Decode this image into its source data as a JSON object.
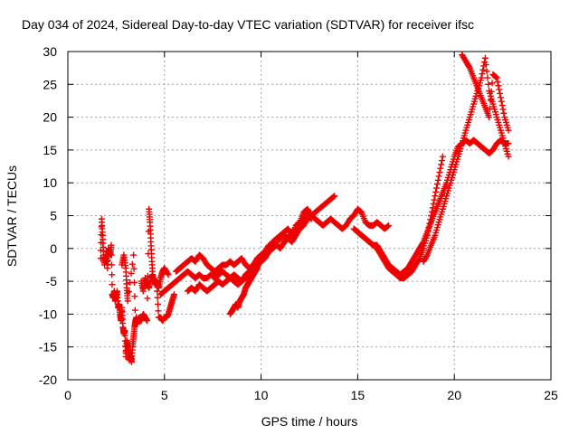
{
  "chart_data": {
    "type": "scatter",
    "title": "Day 034 of 2024, Sidereal Day-to-day VTEC variation (SDTVAR) for receiver ifsc",
    "xlabel": "GPS time / hours",
    "ylabel": "SDTVAR / TECUs",
    "xlim": [
      0,
      25
    ],
    "ylim": [
      -20,
      30
    ],
    "x_ticks": [
      "0",
      "5",
      "10",
      "15",
      "20",
      "25"
    ],
    "y_ticks": [
      "-20",
      "-15",
      "-10",
      "-5",
      "0",
      "5",
      "10",
      "15",
      "20",
      "25",
      "30"
    ],
    "grid": true,
    "marker": "plus",
    "color": "#ee0000",
    "series": [
      {
        "x": [
          1.7,
          1.75,
          1.8,
          1.85,
          1.9,
          2.0,
          2.05,
          2.1,
          2.2,
          2.25,
          2.3,
          2.35,
          2.4,
          2.45,
          2.5,
          2.55,
          2.6,
          2.65,
          2.7,
          2.75,
          2.8,
          2.85,
          2.9,
          2.95,
          3.0,
          3.05,
          3.1,
          3.15,
          3.2,
          3.25,
          3.3,
          3.35,
          3.4,
          3.45,
          3.5,
          3.55,
          3.6
        ],
        "y": [
          -1.5,
          4.5,
          2.0,
          -1.0,
          -2.5,
          -0.5,
          -3.0,
          0.0,
          -1.0,
          0.5,
          -7.0,
          -7.5,
          -6.5,
          -8.0,
          -7.5,
          -6.5,
          -9.0,
          -8.5,
          -10.0,
          -11.0,
          -9.0,
          -12.0,
          -13.0,
          -12.5,
          -16.5,
          -14.0,
          -15.0,
          -16.0,
          -17.0,
          -16.5,
          -17.3,
          -15.0,
          -13.5,
          -12.0,
          -11.0,
          -10.5,
          -11.5
        ]
      },
      {
        "x": [
          2.8,
          2.9,
          3.0,
          3.05,
          3.1,
          3.4,
          3.5,
          3.6,
          3.7,
          3.8,
          3.9,
          4.0,
          4.1,
          4.2,
          4.25,
          4.3,
          4.35,
          4.4,
          4.5,
          4.6,
          4.7,
          4.8,
          4.9,
          5.0,
          5.1,
          5.2,
          5.3,
          5.4,
          5.5
        ],
        "y": [
          -2.5,
          -1.0,
          -3.0,
          -6.0,
          -8.0,
          -1.0,
          -11.5,
          -11.0,
          -10.5,
          -11.0,
          -10.0,
          -10.5,
          -11.0,
          6.0,
          4.0,
          1.0,
          -2.0,
          -4.5,
          -5.0,
          -5.5,
          -10.5,
          -10.5,
          -11.0,
          -10.5,
          -10.5,
          -10.0,
          -9.0,
          -8.0,
          -7.0
        ]
      },
      {
        "x": [
          3.8,
          3.9,
          4.0,
          4.1,
          4.2,
          4.3,
          4.4,
          4.5,
          4.6,
          4.7,
          4.8,
          4.9,
          5.0,
          5.2
        ],
        "y": [
          -5.0,
          -6.5,
          -4.5,
          -5.5,
          -6.0,
          -4.5,
          -4.0,
          -5.5,
          -5.0,
          -6.0,
          -4.5,
          -3.5,
          -3.0,
          -4.0
        ]
      },
      {
        "x": [
          4.8,
          5.0,
          5.2,
          5.4,
          5.6,
          5.8,
          6.0,
          6.2,
          6.4,
          6.6,
          6.8,
          7.0,
          7.2,
          7.4,
          7.6,
          7.8,
          8.0,
          8.2,
          8.4,
          8.6,
          8.8,
          9.0,
          9.2,
          9.4,
          9.6,
          9.8,
          10.0,
          10.2,
          10.4,
          10.6,
          10.8,
          11.0,
          11.2,
          11.4,
          11.6,
          11.8,
          12.0,
          12.2,
          12.4,
          12.6,
          12.8,
          13.0,
          13.2,
          13.4,
          13.6,
          13.8
        ],
        "y": [
          -7.0,
          -6.5,
          -6.0,
          -5.5,
          -5.0,
          -4.5,
          -4.0,
          -3.5,
          -4.0,
          -4.5,
          -4.0,
          -4.5,
          -4.5,
          -4.0,
          -4.5,
          -4.0,
          -3.5,
          -4.0,
          -4.5,
          -4.0,
          -4.5,
          -5.0,
          -4.5,
          -4.0,
          -3.5,
          -2.5,
          -2.0,
          -1.5,
          -0.5,
          0.0,
          0.5,
          0.0,
          1.0,
          1.5,
          1.0,
          2.0,
          3.0,
          3.5,
          4.5,
          5.0,
          5.5,
          6.0,
          6.5,
          7.0,
          7.5,
          8.0
        ]
      },
      {
        "x": [
          5.6,
          5.8,
          6.0,
          6.2,
          6.4,
          6.6,
          6.8,
          7.0,
          7.2,
          7.4,
          7.6,
          7.8,
          8.0,
          8.2,
          8.4,
          8.6,
          8.8,
          9.0,
          9.2,
          9.4,
          9.6,
          9.8,
          10.0,
          10.2,
          10.4,
          10.6,
          10.8,
          11.0,
          11.2,
          11.4,
          11.6,
          11.8,
          12.0,
          12.2,
          12.4,
          12.6,
          12.8,
          13.0,
          13.2,
          13.4,
          13.6,
          13.8,
          14.0,
          14.2,
          14.4,
          14.6,
          14.8,
          15.0,
          15.2,
          15.4,
          15.6,
          15.8,
          16.0,
          16.2,
          16.4,
          16.6
        ],
        "y": [
          -3.5,
          -3.0,
          -2.5,
          -2.0,
          -1.5,
          -2.0,
          -1.0,
          -1.5,
          -2.5,
          -3.0,
          -3.5,
          -3.0,
          -2.5,
          -2.5,
          -2.0,
          -2.5,
          -2.0,
          -1.5,
          -2.5,
          -3.0,
          -2.5,
          -1.5,
          -1.0,
          -0.5,
          0.0,
          1.0,
          1.5,
          2.0,
          2.5,
          3.0,
          2.0,
          3.5,
          4.0,
          5.5,
          6.0,
          5.0,
          4.5,
          4.0,
          3.5,
          4.0,
          4.5,
          4.0,
          3.5,
          3.0,
          3.5,
          4.5,
          5.0,
          6.0,
          5.5,
          4.0,
          3.5,
          3.5,
          4.0,
          3.5,
          3.0,
          3.5
        ]
      },
      {
        "x": [
          6.2,
          6.4,
          6.6,
          6.8,
          7.0,
          7.2,
          7.4,
          7.6,
          7.8,
          8.0,
          8.2,
          8.4,
          8.6,
          8.8,
          9.0,
          9.2,
          9.4,
          9.6,
          9.8,
          10.0,
          10.2,
          10.4,
          10.6,
          10.8,
          11.0,
          11.2,
          11.4,
          11.6,
          11.8,
          12.0,
          12.2,
          12.4,
          12.6
        ],
        "y": [
          -6.5,
          -6.0,
          -6.5,
          -5.5,
          -6.0,
          -6.5,
          -6.0,
          -5.5,
          -5.0,
          -5.5,
          -5.0,
          -4.5,
          -5.0,
          -5.5,
          -5.0,
          -4.0,
          -3.5,
          -2.5,
          -2.0,
          -1.5,
          -0.5,
          0.5,
          0.0,
          1.0,
          1.5,
          2.0,
          1.5,
          2.5,
          3.0,
          3.5,
          4.5,
          5.0,
          4.5
        ]
      },
      {
        "x": [
          8.4,
          8.5,
          8.6,
          8.7,
          8.8,
          8.9,
          9.0,
          9.1,
          9.2,
          9.3,
          9.4,
          9.5,
          9.6,
          9.7,
          9.8,
          9.9,
          10.0
        ],
        "y": [
          -10.0,
          -9.5,
          -9.0,
          -8.5,
          -9.0,
          -8.0,
          -7.5,
          -7.0,
          -6.0,
          -5.5,
          -5.0,
          -4.5,
          -4.0,
          -3.5,
          -3.0,
          -2.0,
          -1.5
        ]
      },
      {
        "x": [
          14.8,
          15.0,
          15.2,
          15.4,
          15.6,
          15.8,
          16.0,
          16.2,
          16.4,
          16.6,
          16.8,
          17.0,
          17.2,
          17.4,
          17.6,
          17.8,
          18.0,
          18.2,
          18.4,
          18.6,
          18.8,
          19.0,
          19.2,
          19.4
        ],
        "y": [
          3.0,
          2.5,
          2.0,
          1.5,
          1.0,
          0.5,
          0.0,
          -1.0,
          -2.0,
          -3.0,
          -3.5,
          -4.0,
          -4.5,
          -4.5,
          -4.0,
          -3.5,
          -2.5,
          -1.5,
          0.0,
          2.0,
          5.0,
          8.0,
          11.0,
          14.0
        ]
      },
      {
        "x": [
          15.0,
          15.2,
          15.4,
          15.6,
          15.8,
          16.0,
          16.2,
          16.4,
          16.6,
          16.8,
          17.0,
          17.2,
          17.4,
          17.6,
          17.8,
          18.0,
          18.2,
          18.4,
          18.6,
          18.8,
          19.0,
          19.2,
          19.4,
          19.6,
          19.8,
          20.0,
          20.2,
          20.4,
          20.6,
          20.8,
          21.0,
          21.2,
          21.4,
          21.6,
          21.8,
          22.0,
          22.2,
          22.4,
          22.6,
          22.8
        ],
        "y": [
          2.5,
          2.0,
          1.5,
          1.0,
          0.5,
          0.5,
          -0.5,
          -1.5,
          -2.5,
          -3.0,
          -3.5,
          -4.0,
          -3.5,
          -3.0,
          -2.0,
          -1.0,
          0.0,
          1.0,
          2.5,
          4.0,
          5.5,
          7.0,
          8.5,
          10.0,
          12.0,
          14.0,
          15.5,
          16.0,
          16.5,
          16.0,
          16.5,
          16.0,
          15.5,
          15.0,
          14.5,
          15.0,
          16.0,
          16.5,
          16.0,
          16.0
        ]
      },
      {
        "x": [
          18.4,
          18.6,
          18.8,
          19.0,
          19.2,
          19.4,
          19.6,
          19.8,
          20.0,
          20.2,
          20.4,
          20.6,
          20.8,
          21.0,
          21.2,
          21.4,
          21.6,
          21.8,
          22.0,
          22.2,
          22.4,
          22.6,
          22.8
        ],
        "y": [
          -2.0,
          -1.0,
          0.5,
          2.0,
          4.0,
          6.0,
          8.0,
          10.0,
          12.0,
          14.0,
          16.0,
          18.0,
          20.0,
          22.0,
          24.0,
          26.0,
          29.0,
          24.0,
          22.0,
          20.0,
          18.0,
          16.0,
          14.0
        ]
      },
      {
        "x": [
          20.4,
          20.6,
          20.8,
          21.0,
          21.2,
          21.4,
          21.6,
          21.8,
          22.0,
          22.2,
          22.4,
          22.6,
          22.8
        ],
        "y": [
          29.5,
          28.5,
          27.5,
          26.0,
          24.5,
          23.0,
          21.5,
          20.0,
          26.5,
          26.0,
          23.0,
          20.0,
          18.0
        ]
      }
    ]
  }
}
